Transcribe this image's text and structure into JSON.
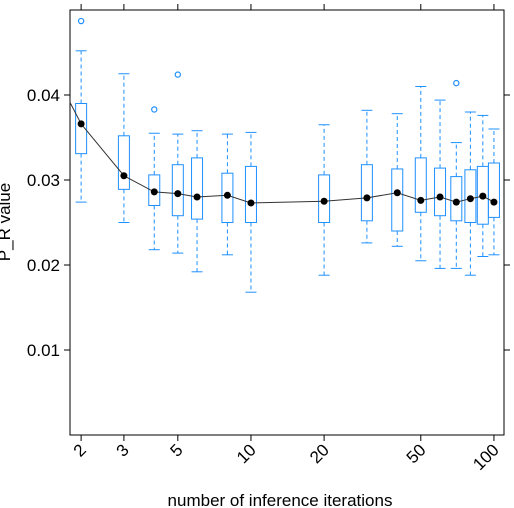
{
  "chart_data": {
    "type": "box",
    "xlabel": "number of inference iterations",
    "ylabel": "P_R value",
    "x_scale": "log",
    "xlim": [
      1.8,
      110
    ],
    "ylim": [
      0.0,
      0.05
    ],
    "x_ticks": [
      2,
      3,
      5,
      10,
      20,
      50,
      100
    ],
    "x_tick_labels": [
      "2",
      "3",
      "5",
      "10",
      "20",
      "50",
      "100"
    ],
    "y_ticks": [
      0.01,
      0.02,
      0.03,
      0.04
    ],
    "y_tick_labels": [
      "0.01",
      "0.02",
      "0.03",
      "0.04"
    ],
    "box_color": "#1e90ff",
    "median_marker_color": "#000000",
    "line_color": "#333333",
    "grid": false,
    "boxes": [
      {
        "x": 2,
        "whisker_low": 0.0274,
        "q1": 0.0331,
        "median": 0.0366,
        "q3": 0.039,
        "whisker_high": 0.0452,
        "outliers": [
          0.0487
        ]
      },
      {
        "x": 3,
        "whisker_low": 0.025,
        "q1": 0.0289,
        "median": 0.0305,
        "q3": 0.0352,
        "whisker_high": 0.0425,
        "outliers": []
      },
      {
        "x": 4,
        "whisker_low": 0.0218,
        "q1": 0.027,
        "median": 0.0286,
        "q3": 0.0306,
        "whisker_high": 0.0355,
        "outliers": [
          0.0383
        ]
      },
      {
        "x": 5,
        "whisker_low": 0.0214,
        "q1": 0.0258,
        "median": 0.0284,
        "q3": 0.0318,
        "whisker_high": 0.0354,
        "outliers": [
          0.0424
        ]
      },
      {
        "x": 6,
        "whisker_low": 0.0192,
        "q1": 0.0254,
        "median": 0.028,
        "q3": 0.0326,
        "whisker_high": 0.0358,
        "outliers": []
      },
      {
        "x": 8,
        "whisker_low": 0.0212,
        "q1": 0.025,
        "median": 0.0282,
        "q3": 0.0308,
        "whisker_high": 0.0354,
        "outliers": []
      },
      {
        "x": 10,
        "whisker_low": 0.0168,
        "q1": 0.025,
        "median": 0.0273,
        "q3": 0.0316,
        "whisker_high": 0.0356,
        "outliers": []
      },
      {
        "x": 20,
        "whisker_low": 0.0188,
        "q1": 0.025,
        "median": 0.0275,
        "q3": 0.0306,
        "whisker_high": 0.0365,
        "outliers": []
      },
      {
        "x": 30,
        "whisker_low": 0.0226,
        "q1": 0.0252,
        "median": 0.0279,
        "q3": 0.0318,
        "whisker_high": 0.0382,
        "outliers": []
      },
      {
        "x": 40,
        "whisker_low": 0.0222,
        "q1": 0.024,
        "median": 0.0285,
        "q3": 0.0313,
        "whisker_high": 0.0378,
        "outliers": []
      },
      {
        "x": 50,
        "whisker_low": 0.0205,
        "q1": 0.0262,
        "median": 0.0276,
        "q3": 0.0326,
        "whisker_high": 0.041,
        "outliers": []
      },
      {
        "x": 60,
        "whisker_low": 0.0196,
        "q1": 0.0258,
        "median": 0.028,
        "q3": 0.0314,
        "whisker_high": 0.0394,
        "outliers": []
      },
      {
        "x": 70,
        "whisker_low": 0.0196,
        "q1": 0.0252,
        "median": 0.0274,
        "q3": 0.0304,
        "whisker_high": 0.0344,
        "outliers": [
          0.0414
        ]
      },
      {
        "x": 80,
        "whisker_low": 0.0188,
        "q1": 0.025,
        "median": 0.0278,
        "q3": 0.0312,
        "whisker_high": 0.038,
        "outliers": []
      },
      {
        "x": 90,
        "whisker_low": 0.021,
        "q1": 0.0248,
        "median": 0.0281,
        "q3": 0.0316,
        "whisker_high": 0.0376,
        "outliers": []
      },
      {
        "x": 100,
        "whisker_low": 0.0212,
        "q1": 0.0256,
        "median": 0.0274,
        "q3": 0.032,
        "whisker_high": 0.036,
        "outliers": []
      }
    ]
  }
}
